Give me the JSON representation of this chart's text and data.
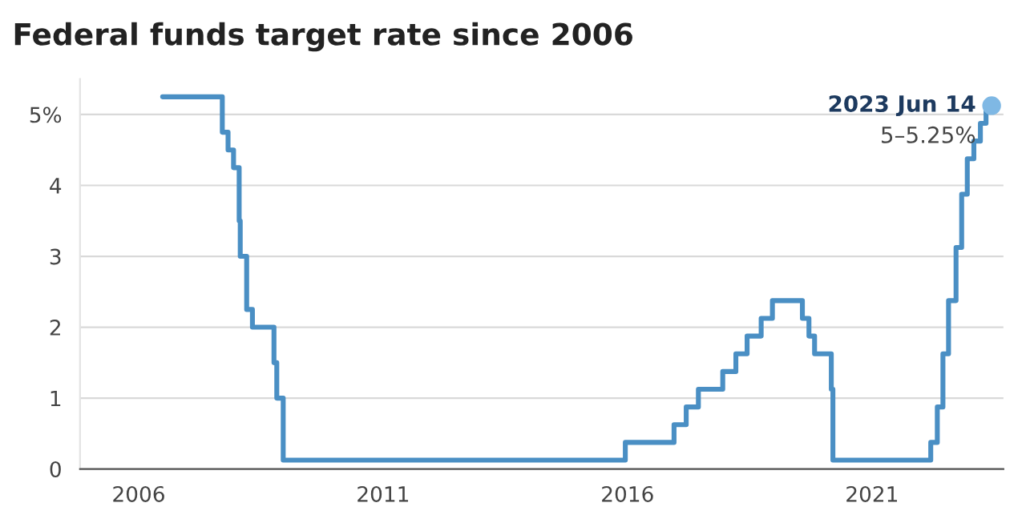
{
  "chart_data": {
    "type": "step",
    "title": "Federal funds target rate since 2006",
    "x": [
      "2006-06-29",
      "2007-09-18",
      "2007-10-31",
      "2007-12-11",
      "2008-01-22",
      "2008-01-30",
      "2008-03-18",
      "2008-04-30",
      "2008-10-08",
      "2008-10-29",
      "2008-12-16",
      "2015-12-16",
      "2016-12-14",
      "2017-03-15",
      "2017-06-14",
      "2017-12-13",
      "2018-03-21",
      "2018-06-13",
      "2018-09-26",
      "2018-12-19",
      "2019-07-31",
      "2019-09-18",
      "2019-10-30",
      "2020-03-03",
      "2020-03-15",
      "2022-03-16",
      "2022-05-04",
      "2022-06-15",
      "2022-07-27",
      "2022-09-21",
      "2022-11-02",
      "2022-12-14",
      "2023-02-01",
      "2023-03-22",
      "2023-05-03",
      "2023-06-14"
    ],
    "series": [
      {
        "color": "#4a8fc4",
        "values": [
          5.25,
          4.75,
          4.5,
          4.25,
          3.5,
          3.0,
          2.25,
          2.0,
          1.5,
          1.0,
          0.125,
          0.375,
          0.625,
          0.875,
          1.125,
          1.375,
          1.625,
          1.875,
          2.125,
          2.375,
          2.125,
          1.875,
          1.625,
          1.125,
          0.125,
          0.375,
          0.875,
          1.625,
          2.375,
          3.125,
          3.875,
          4.375,
          4.625,
          4.875,
          5.125,
          5.125
        ]
      },
      {
        "type": "scatter",
        "color": "#7fb8e4",
        "x": [
          "2023-06-14"
        ],
        "values": [
          5.125
        ]
      }
    ],
    "annotations": [
      {
        "text": "2023 Jun 14",
        "x": "2023-06-14",
        "y": 5.125
      },
      {
        "text": "5–5.25%",
        "x": "2023-06-14",
        "y": 5.125
      }
    ],
    "xlim": [
      "2004-10-20",
      "2023-09-10"
    ],
    "xticks": [
      "2006",
      "2011",
      "2016",
      "2021"
    ],
    "ylim": [
      0,
      5.5
    ],
    "yticks": [
      0,
      1,
      2,
      3,
      4,
      {
        "value": 5,
        "label": "5%"
      }
    ],
    "grid": "y",
    "legend": false
  }
}
